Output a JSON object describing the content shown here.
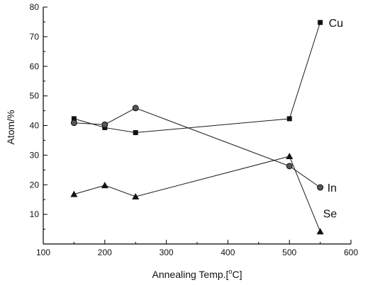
{
  "chart_data": {
    "type": "line",
    "xlabel_main": "Annealing Temp.[",
    "xlabel_unit": "o",
    "xlabel_end": "C]",
    "ylabel": "Atom/%",
    "xlim": [
      100,
      600
    ],
    "ylim": [
      0,
      80
    ],
    "xticks": [
      "100",
      "200",
      "300",
      "400",
      "500",
      "600"
    ],
    "yticks": [
      "10",
      "20",
      "30",
      "40",
      "50",
      "60",
      "70",
      "80"
    ],
    "grid": false,
    "legend": "inline labels at series ends",
    "series": [
      {
        "name": "Cu",
        "marker": "square",
        "x": [
          150,
          200,
          250,
          500,
          550
        ],
        "y": [
          42.3,
          39.3,
          37.6,
          42.3,
          74.8
        ]
      },
      {
        "name": "In",
        "marker": "circle",
        "x": [
          150,
          200,
          250,
          500,
          550
        ],
        "y": [
          40.9,
          40.3,
          45.9,
          26.3,
          19.1
        ]
      },
      {
        "name": "Se",
        "marker": "triangle",
        "x": [
          150,
          200,
          250,
          500,
          550
        ],
        "y": [
          16.8,
          19.8,
          16.0,
          29.6,
          4.2
        ]
      }
    ],
    "colors": {
      "line": "#1a1a1a",
      "marker": "#111111",
      "axis": "#000000"
    }
  }
}
